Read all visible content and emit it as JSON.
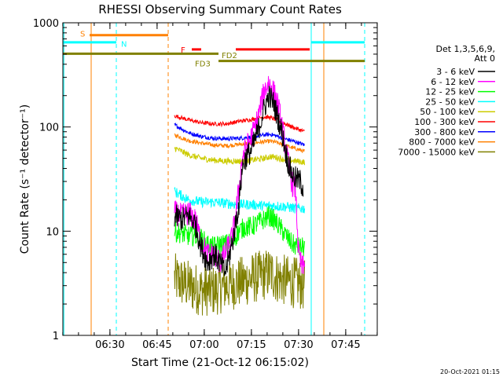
{
  "chart_data": {
    "type": "line",
    "title": "RHESSI Observing Summary Count Rates",
    "xlabel": "Start Time (21-Oct-12 06:15:02)",
    "ylabel": "Count Rate (s⁻¹ detector⁻¹)",
    "yscale": "log",
    "ylim": [
      1,
      1000
    ],
    "xlim_minutes": [
      0,
      100
    ],
    "x_ticks": [
      {
        "m": 14.97,
        "label": "06:30"
      },
      {
        "m": 29.97,
        "label": "06:45"
      },
      {
        "m": 44.97,
        "label": "07:00"
      },
      {
        "m": 59.97,
        "label": "07:15"
      },
      {
        "m": 74.97,
        "label": "07:30"
      },
      {
        "m": 89.97,
        "label": "07:45"
      }
    ],
    "y_ticks": [
      {
        "v": 1,
        "label": "1"
      },
      {
        "v": 10,
        "label": "10"
      },
      {
        "v": 100,
        "label": "100"
      },
      {
        "v": 1000,
        "label": "1000"
      }
    ],
    "legend_title": [
      "Det 1,3,5,6,9,",
      "Att 0"
    ],
    "series": [
      {
        "name": "3 - 6 keV",
        "color": "#000000",
        "points": [
          [
            35.5,
            14
          ],
          [
            38,
            13
          ],
          [
            40,
            14
          ],
          [
            42,
            12
          ],
          [
            44,
            7
          ],
          [
            46,
            5
          ],
          [
            48,
            6
          ],
          [
            50,
            5
          ],
          [
            51.5,
            4
          ],
          [
            52.5,
            5
          ],
          [
            54,
            8
          ],
          [
            56,
            18
          ],
          [
            57,
            40
          ],
          [
            58,
            50
          ],
          [
            60,
            60
          ],
          [
            62,
            90
          ],
          [
            64,
            150
          ],
          [
            65.5,
            200
          ],
          [
            67,
            170
          ],
          [
            68.5,
            120
          ],
          [
            70,
            80
          ],
          [
            71,
            55
          ],
          [
            72,
            42
          ],
          [
            73,
            35
          ],
          [
            74,
            32
          ],
          [
            75.5,
            30
          ],
          [
            76.5,
            26
          ]
        ],
        "noise": 0.12
      },
      {
        "name": "6 - 12 keV",
        "color": "#ff00ff",
        "points": [
          [
            35.5,
            15
          ],
          [
            38,
            14
          ],
          [
            40,
            15
          ],
          [
            42,
            13
          ],
          [
            44,
            8
          ],
          [
            46,
            6
          ],
          [
            48,
            6
          ],
          [
            50,
            5
          ],
          [
            51.5,
            6
          ],
          [
            52.5,
            7
          ],
          [
            54,
            9
          ],
          [
            56,
            25
          ],
          [
            57,
            50
          ],
          [
            58,
            60
          ],
          [
            60,
            80
          ],
          [
            62,
            120
          ],
          [
            64,
            220
          ],
          [
            65.5,
            270
          ],
          [
            67,
            220
          ],
          [
            68.5,
            160
          ],
          [
            70,
            90
          ],
          [
            71,
            60
          ],
          [
            72,
            40
          ],
          [
            73,
            28
          ],
          [
            74,
            25
          ],
          [
            75,
            6
          ],
          [
            76,
            4.5
          ],
          [
            77,
            4.5
          ]
        ],
        "noise": 0.12
      },
      {
        "name": "12 - 25 keV",
        "color": "#00ff00",
        "points": [
          [
            35.5,
            10
          ],
          [
            38,
            9.5
          ],
          [
            40,
            9
          ],
          [
            42,
            9
          ],
          [
            44,
            8.5
          ],
          [
            46,
            7.5
          ],
          [
            48,
            7
          ],
          [
            50,
            7.5
          ],
          [
            52,
            7.5
          ],
          [
            54,
            8
          ],
          [
            56,
            10
          ],
          [
            58,
            11
          ],
          [
            60,
            11
          ],
          [
            62,
            12
          ],
          [
            64,
            13
          ],
          [
            65.5,
            14
          ],
          [
            67,
            13
          ],
          [
            69,
            11
          ],
          [
            71,
            9
          ],
          [
            73,
            7.5
          ],
          [
            75,
            7
          ],
          [
            77,
            7
          ]
        ],
        "noise": 0.1
      },
      {
        "name": "25 - 50 keV",
        "color": "#00ffff",
        "points": [
          [
            35.5,
            24
          ],
          [
            40,
            20
          ],
          [
            44,
            19
          ],
          [
            48,
            19
          ],
          [
            52,
            18.5
          ],
          [
            56,
            18
          ],
          [
            60,
            18
          ],
          [
            64,
            17.5
          ],
          [
            68,
            17.5
          ],
          [
            72,
            17
          ],
          [
            74,
            16.5
          ],
          [
            77,
            16.5
          ]
        ],
        "noise": 0.05
      },
      {
        "name": "50 - 100 keV",
        "color": "#cccc00",
        "points": [
          [
            35.5,
            63
          ],
          [
            40,
            54
          ],
          [
            44,
            50
          ],
          [
            48,
            48
          ],
          [
            52,
            47
          ],
          [
            56,
            47
          ],
          [
            60,
            48
          ],
          [
            64,
            50
          ],
          [
            66,
            52
          ],
          [
            68,
            51
          ],
          [
            70,
            49
          ],
          [
            74,
            47
          ],
          [
            77,
            46
          ]
        ],
        "noise": 0.03
      },
      {
        "name": "100 - 300 keV",
        "color": "#ff0000",
        "points": [
          [
            35.5,
            128
          ],
          [
            40,
            117
          ],
          [
            44,
            110
          ],
          [
            48,
            107
          ],
          [
            52,
            107
          ],
          [
            56,
            113
          ],
          [
            60,
            118
          ],
          [
            64,
            125
          ],
          [
            66,
            123
          ],
          [
            68,
            117
          ],
          [
            70,
            110
          ],
          [
            72,
            103
          ],
          [
            74,
            97
          ],
          [
            77,
            90
          ]
        ],
        "noise": 0.02
      },
      {
        "name": "300 - 800 keV",
        "color": "#0000ff",
        "points": [
          [
            35.5,
            105
          ],
          [
            40,
            88
          ],
          [
            44,
            81
          ],
          [
            48,
            78
          ],
          [
            52,
            77
          ],
          [
            56,
            78
          ],
          [
            60,
            80
          ],
          [
            64,
            84
          ],
          [
            66,
            85
          ],
          [
            68,
            82
          ],
          [
            70,
            78
          ],
          [
            74,
            72
          ],
          [
            77,
            67
          ]
        ],
        "noise": 0.02
      },
      {
        "name": "800 - 7000 keV",
        "color": "#ff8000",
        "points": [
          [
            35.5,
            84
          ],
          [
            40,
            74
          ],
          [
            44,
            70
          ],
          [
            48,
            67
          ],
          [
            52,
            66
          ],
          [
            56,
            68
          ],
          [
            60,
            70
          ],
          [
            64,
            72
          ],
          [
            66,
            73
          ],
          [
            68,
            71
          ],
          [
            70,
            67
          ],
          [
            74,
            62
          ],
          [
            77,
            58
          ]
        ],
        "noise": 0.02
      },
      {
        "name": "7000 - 15000 keV",
        "color": "#808000",
        "points": [
          [
            35.5,
            3.5
          ],
          [
            40,
            3
          ],
          [
            44,
            2.7
          ],
          [
            48,
            2.7
          ],
          [
            52,
            3
          ],
          [
            56,
            3.2
          ],
          [
            60,
            3.5
          ],
          [
            64,
            3.8
          ],
          [
            66,
            4
          ],
          [
            68,
            3.6
          ],
          [
            70,
            3.4
          ],
          [
            74,
            3.2
          ],
          [
            77,
            3
          ]
        ],
        "noise": 0.25
      }
    ],
    "flag_bars": [
      {
        "label": "S",
        "color": "#ff8000",
        "x0": 8.5,
        "x1": 33.5,
        "y": 760
      },
      {
        "label": "N",
        "color": "#00ffff",
        "x0": 0,
        "x1": 17.0,
        "y": 650
      },
      {
        "label": "F",
        "color": "#ff0000",
        "x0": 41.0,
        "x1": 44.0,
        "y": 555
      },
      {
        "label": "F",
        "color": "#ff0000",
        "x0": 55.0,
        "x1": 78.5,
        "y": 555
      },
      {
        "label": "FD2",
        "color": "#808000",
        "x0": 0,
        "x1": 49.5,
        "y": 505
      },
      {
        "label": "FD3",
        "color": "#808000",
        "x0": 49.5,
        "x1": 96.0,
        "y": 430
      },
      {
        "label": "",
        "color": "#00ffff",
        "x0": 79.0,
        "x1": 96.0,
        "y": 650
      }
    ],
    "flag_labels": [
      {
        "text": "S",
        "color": "#ff8000",
        "x": 5.5,
        "y": 790
      },
      {
        "text": "N",
        "color": "#00ffff",
        "x": 18.5,
        "y": 630
      },
      {
        "text": "F",
        "color": "#ff0000",
        "x": 37.5,
        "y": 555
      },
      {
        "text": "FD2",
        "color": "#808000",
        "x": 50.5,
        "y": 490
      },
      {
        "text": "FD3",
        "color": "#808000",
        "x": 42.0,
        "y": 410
      }
    ],
    "vlines": [
      {
        "x": 0.3,
        "color": "#00ffff",
        "dash": false
      },
      {
        "x": 9.0,
        "color": "#ff8000",
        "dash": false
      },
      {
        "x": 17.0,
        "color": "#00ffff",
        "dash": true
      },
      {
        "x": 33.5,
        "color": "#ff8000",
        "dash": true
      },
      {
        "x": 79.0,
        "color": "#00ffff",
        "dash": false
      },
      {
        "x": 83.0,
        "color": "#ff8000",
        "dash": false
      },
      {
        "x": 96.0,
        "color": "#00ffff",
        "dash": true
      }
    ]
  },
  "footer": {
    "date": "20-Oct-2021 01:15"
  }
}
